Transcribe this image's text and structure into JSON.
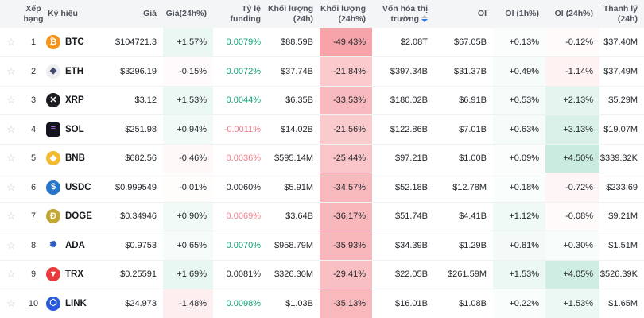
{
  "table": {
    "favorite_glyph": "☆",
    "sort": {
      "column": "mcap",
      "direction": "desc"
    },
    "columns": [
      {
        "key": "fav",
        "label": "",
        "align": "center"
      },
      {
        "key": "rank",
        "label": "Xếp hạng",
        "align": "center"
      },
      {
        "key": "symbol",
        "label": "Ký hiệu",
        "align": "left"
      },
      {
        "key": "price",
        "label": "Giá",
        "align": "right"
      },
      {
        "key": "price_chg",
        "label": "Giá(24h%)",
        "align": "right"
      },
      {
        "key": "funding",
        "label": "Tỷ lệ funding",
        "align": "right"
      },
      {
        "key": "vol",
        "label": "Khối lượng (24h)",
        "align": "right"
      },
      {
        "key": "vol_chg",
        "label": "Khối lượng (24h%)",
        "align": "right"
      },
      {
        "key": "mcap",
        "label": "Vốn hóa thị trường",
        "align": "right"
      },
      {
        "key": "oi",
        "label": "OI",
        "align": "right"
      },
      {
        "key": "oi_1h",
        "label": "OI (1h%)",
        "align": "right"
      },
      {
        "key": "oi_24h",
        "label": "OI (24h%)",
        "align": "right"
      },
      {
        "key": "liq",
        "label": "Thanh lý (24h)",
        "align": "right"
      }
    ],
    "rows": [
      {
        "rank": "1",
        "symbol": "BTC",
        "icon": {
          "glyph": "₿",
          "bg": "#f7931a",
          "fg": "#ffffff"
        },
        "price": "$104721.3",
        "price_chg": "+1.57%",
        "price_chg_val": 1.57,
        "funding": "0.0079%",
        "funding_color": "green",
        "vol": "$88.59B",
        "vol_chg": "-49.43%",
        "vol_chg_val": -49.43,
        "mcap": "$2.08T",
        "oi": "$67.05B",
        "oi_1h": "+0.13%",
        "oi_1h_val": 0.13,
        "oi_24h": "-0.12%",
        "oi_24h_val": -0.12,
        "liq": "$37.40M"
      },
      {
        "rank": "2",
        "symbol": "ETH",
        "icon": {
          "glyph": "◆",
          "bg": "#edeef2",
          "fg": "#454b70"
        },
        "price": "$3296.19",
        "price_chg": "-0.15%",
        "price_chg_val": -0.15,
        "funding": "0.0072%",
        "funding_color": "green",
        "vol": "$37.74B",
        "vol_chg": "-21.84%",
        "vol_chg_val": -21.84,
        "mcap": "$397.34B",
        "oi": "$31.37B",
        "oi_1h": "+0.49%",
        "oi_1h_val": 0.49,
        "oi_24h": "-1.14%",
        "oi_24h_val": -1.14,
        "liq": "$37.49M"
      },
      {
        "rank": "3",
        "symbol": "XRP",
        "icon": {
          "glyph": "✕",
          "bg": "#1b1d21",
          "fg": "#ffffff"
        },
        "price": "$3.12",
        "price_chg": "+1.53%",
        "price_chg_val": 1.53,
        "funding": "0.0044%",
        "funding_color": "green",
        "vol": "$6.35B",
        "vol_chg": "-33.53%",
        "vol_chg_val": -33.53,
        "mcap": "$180.02B",
        "oi": "$6.91B",
        "oi_1h": "+0.53%",
        "oi_1h_val": 0.53,
        "oi_24h": "+2.13%",
        "oi_24h_val": 2.13,
        "liq": "$5.29M"
      },
      {
        "rank": "4",
        "symbol": "SOL",
        "icon": {
          "glyph": "≡",
          "bg": "#15151f",
          "fg": "#b377ff",
          "shape": "square"
        },
        "price": "$251.98",
        "price_chg": "+0.94%",
        "price_chg_val": 0.94,
        "funding": "-0.0011%",
        "funding_color": "pink",
        "vol": "$14.02B",
        "vol_chg": "-21.56%",
        "vol_chg_val": -21.56,
        "mcap": "$122.86B",
        "oi": "$7.01B",
        "oi_1h": "+0.63%",
        "oi_1h_val": 0.63,
        "oi_24h": "+3.13%",
        "oi_24h_val": 3.13,
        "liq": "$19.07M"
      },
      {
        "rank": "5",
        "symbol": "BNB",
        "icon": {
          "glyph": "◆",
          "bg": "#f3ba2f",
          "fg": "#ffffff"
        },
        "price": "$682.56",
        "price_chg": "-0.46%",
        "price_chg_val": -0.46,
        "funding": "0.0036%",
        "funding_color": "pink",
        "vol": "$595.14M",
        "vol_chg": "-25.44%",
        "vol_chg_val": -25.44,
        "mcap": "$97.21B",
        "oi": "$1.00B",
        "oi_1h": "+0.09%",
        "oi_1h_val": 0.09,
        "oi_24h": "+4.50%",
        "oi_24h_val": 4.5,
        "liq": "$339.32K"
      },
      {
        "rank": "6",
        "symbol": "USDC",
        "icon": {
          "glyph": "$",
          "bg": "#2775ca",
          "fg": "#ffffff"
        },
        "price": "$0.999549",
        "price_chg": "-0.01%",
        "price_chg_val": -0.01,
        "funding": "0.0060%",
        "funding_color": "dark",
        "vol": "$5.91M",
        "vol_chg": "-34.57%",
        "vol_chg_val": -34.57,
        "mcap": "$52.18B",
        "oi": "$12.78M",
        "oi_1h": "+0.18%",
        "oi_1h_val": 0.18,
        "oi_24h": "-0.72%",
        "oi_24h_val": -0.72,
        "liq": "$233.69"
      },
      {
        "rank": "7",
        "symbol": "DOGE",
        "icon": {
          "glyph": "Ð",
          "bg": "#c3a634",
          "fg": "#ffffff"
        },
        "price": "$0.34946",
        "price_chg": "+0.90%",
        "price_chg_val": 0.9,
        "funding": "0.0069%",
        "funding_color": "pink",
        "vol": "$3.64B",
        "vol_chg": "-36.17%",
        "vol_chg_val": -36.17,
        "mcap": "$51.74B",
        "oi": "$4.41B",
        "oi_1h": "+1.12%",
        "oi_1h_val": 1.12,
        "oi_24h": "-0.08%",
        "oi_24h_val": -0.08,
        "liq": "$9.21M"
      },
      {
        "rank": "8",
        "symbol": "ADA",
        "icon": {
          "glyph": "✺",
          "bg": "#ffffff",
          "fg": "#2b57c4"
        },
        "price": "$0.9753",
        "price_chg": "+0.65%",
        "price_chg_val": 0.65,
        "funding": "0.0070%",
        "funding_color": "green",
        "vol": "$958.79M",
        "vol_chg": "-35.93%",
        "vol_chg_val": -35.93,
        "mcap": "$34.39B",
        "oi": "$1.29B",
        "oi_1h": "+0.81%",
        "oi_1h_val": 0.81,
        "oi_24h": "+0.30%",
        "oi_24h_val": 0.3,
        "liq": "$1.51M"
      },
      {
        "rank": "9",
        "symbol": "TRX",
        "icon": {
          "glyph": "▼",
          "bg": "#e93b3d",
          "fg": "#ffffff"
        },
        "price": "$0.25591",
        "price_chg": "+1.69%",
        "price_chg_val": 1.69,
        "funding": "0.0081%",
        "funding_color": "dark",
        "vol": "$326.30M",
        "vol_chg": "-29.41%",
        "vol_chg_val": -29.41,
        "mcap": "$22.05B",
        "oi": "$261.59M",
        "oi_1h": "+1.53%",
        "oi_1h_val": 1.53,
        "oi_24h": "+4.05%",
        "oi_24h_val": 4.05,
        "liq": "$526.39K"
      },
      {
        "rank": "10",
        "symbol": "LINK",
        "icon": {
          "glyph": "⬡",
          "bg": "#2a5ada",
          "fg": "#ffffff"
        },
        "price": "$24.973",
        "price_chg": "-1.48%",
        "price_chg_val": -1.48,
        "funding": "0.0098%",
        "funding_color": "green",
        "vol": "$1.03B",
        "vol_chg": "-35.13%",
        "vol_chg_val": -35.13,
        "mcap": "$16.01B",
        "oi": "$1.08B",
        "oi_1h": "+0.22%",
        "oi_1h_val": 0.22,
        "oi_24h": "+1.53%",
        "oi_24h_val": 1.53,
        "liq": "$1.65M"
      }
    ]
  },
  "colors": {
    "funding_green": "#129f77",
    "funding_pink": "#f07c89",
    "funding_dark": "#23262b",
    "heat_green_rgb": "10,164,108",
    "heat_red_rgb": "236,61,72",
    "header_bg": "#f4f5f7",
    "sort_active": "#2c7be5"
  }
}
